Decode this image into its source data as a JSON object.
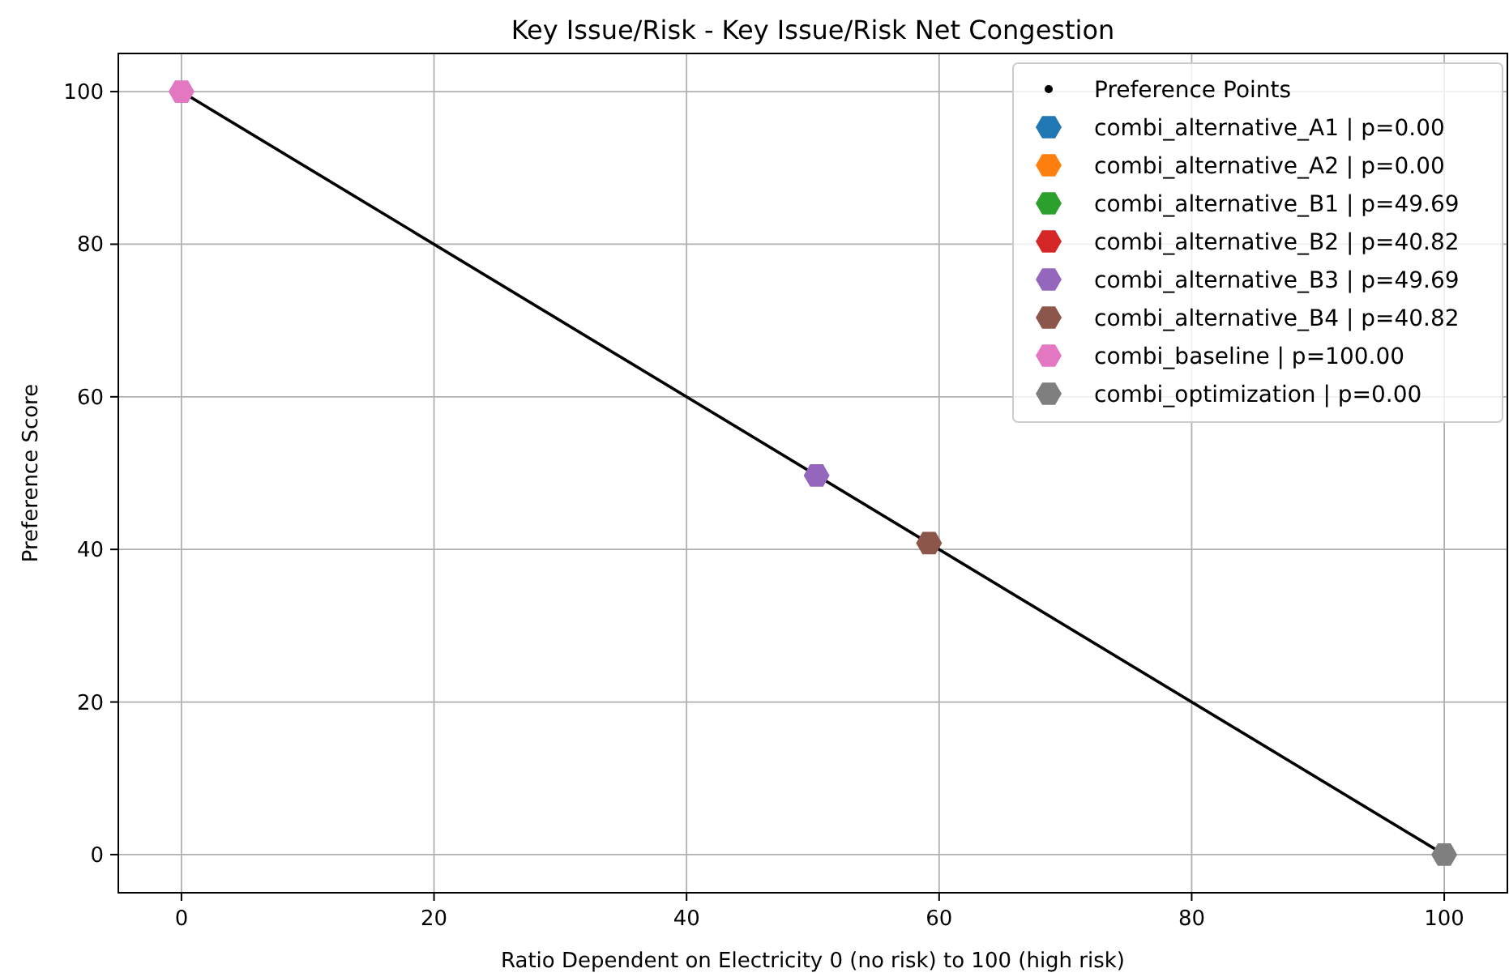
{
  "chart_data": {
    "type": "scatter",
    "title": "Key Issue/Risk - Key Issue/Risk Net Congestion",
    "xlabel": "Ratio Dependent on Electricity 0 (no risk) to 100 (high risk)",
    "ylabel": "Preference Score",
    "xlim": [
      -5,
      105
    ],
    "ylim": [
      -5,
      105
    ],
    "xticks": [
      0,
      20,
      40,
      60,
      80,
      100
    ],
    "yticks": [
      0,
      20,
      40,
      60,
      80,
      100
    ],
    "grid": true,
    "legend": "top right",
    "series": [
      {
        "name": "Preference Points",
        "type": "line",
        "marker": "circle",
        "color": "#000000",
        "x": [
          0,
          100
        ],
        "values": [
          100,
          0
        ]
      },
      {
        "name": "combi_alternative_A1 | p=0.00",
        "color": "#1f77b4",
        "x": [
          null
        ],
        "values": [
          null
        ]
      },
      {
        "name": "combi_alternative_A2 | p=0.00",
        "color": "#ff7f0e",
        "x": [
          null
        ],
        "values": [
          null
        ]
      },
      {
        "name": "combi_alternative_B1 | p=49.69",
        "color": "#2ca02c",
        "x": [
          null
        ],
        "values": [
          null
        ]
      },
      {
        "name": "combi_alternative_B2 | p=40.82",
        "color": "#d62728",
        "x": [
          null
        ],
        "values": [
          null
        ]
      },
      {
        "name": "combi_alternative_B3 | p=49.69",
        "color": "#9467bd",
        "x": [
          50.3
        ],
        "values": [
          49.69
        ]
      },
      {
        "name": "combi_alternative_B4 | p=40.82",
        "color": "#8c564b",
        "x": [
          59.2
        ],
        "values": [
          40.82
        ]
      },
      {
        "name": "combi_baseline | p=100.00",
        "color": "#e377c2",
        "x": [
          0
        ],
        "values": [
          100
        ]
      },
      {
        "name": "combi_optimization | p=0.00",
        "color": "#7f7f7f",
        "x": [
          100
        ],
        "values": [
          0
        ]
      }
    ]
  }
}
